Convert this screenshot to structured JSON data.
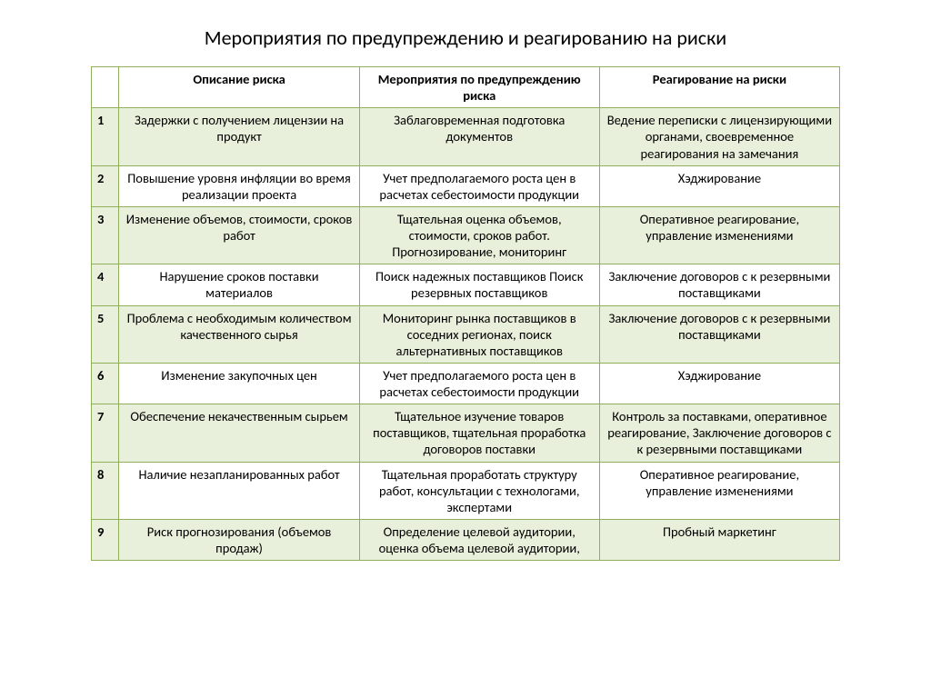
{
  "title": "Мероприятия по предупреждению и реагированию на риски",
  "columns": [
    "",
    "Описание риска",
    "Мероприятия по предупреждению риска",
    "Реагирование на риски"
  ],
  "rows": [
    {
      "n": "1",
      "desc": "Задержки с получением лицензии на продукт",
      "prev": "Заблаговременная подготовка документов",
      "react": "Ведение переписки с лицензирующими органами, своевременное реагирования на замечания"
    },
    {
      "n": "2",
      "desc": "Повышение уровня инфляции во время реализации проекта",
      "prev": "Учет предполагаемого роста цен в расчетах себестоимости продукции",
      "react": "Хэджирование"
    },
    {
      "n": "3",
      "desc": "Изменение объемов, стоимости, сроков работ",
      "prev": "Тщательная оценка объемов, стоимости, сроков работ. Прогнозирование, мониторинг",
      "react": "Оперативное реагирование, управление изменениями"
    },
    {
      "n": "4",
      "desc": "Нарушение сроков поставки материалов",
      "prev": "Поиск надежных поставщиков Поиск резервных поставщиков",
      "react": "Заключение договоров с к резервными поставщиками"
    },
    {
      "n": "5",
      "desc": "Проблема с необходимым количеством качественного сырья",
      "prev": "Мониторинг  рынка поставщиков в соседних регионах, поиск альтернативных поставщиков",
      "react": "Заключение договоров с к резервными поставщиками"
    },
    {
      "n": "6",
      "desc": "Изменение закупочных цен",
      "prev": "Учет предполагаемого роста цен в расчетах себестоимости продукции",
      "react": "Хэджирование"
    },
    {
      "n": "7",
      "desc": "Обеспечение некачественным сырьем",
      "prev": "Тщательное изучение товаров поставщиков, тщательная проработка договоров поставки",
      "react": "Контроль за поставками, оперативное реагирование, Заключение договоров с к резервными поставщиками"
    },
    {
      "n": "8",
      "desc": "Наличие незапланированных работ",
      "prev": "Тщательная  проработать структуру работ, консультации с технологами, экспертами",
      "react": "Оперативное реагирование, управление изменениями"
    },
    {
      "n": "9",
      "desc": "Риск прогнозирования (объемов продаж)",
      "prev": "Определение целевой аудитории, оценка объема целевой аудитории,",
      "react": "Пробный маркетинг"
    }
  ],
  "colors": {
    "border": "#8faf5a",
    "zebra": "#e8efda",
    "background": "#ffffff"
  }
}
